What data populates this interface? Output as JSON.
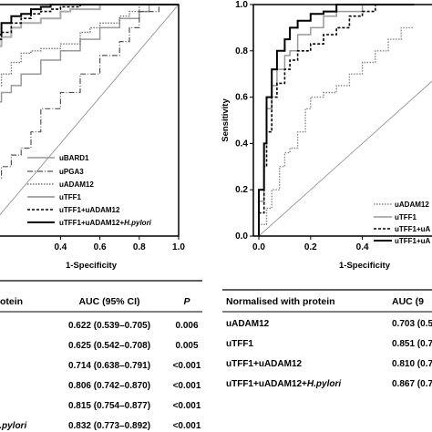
{
  "chart_data": [
    {
      "type": "line",
      "xlabel": "1-Specificity",
      "ylabel": "",
      "xlim": [
        0,
        1.0
      ],
      "ylim": [
        0,
        1.0
      ],
      "x_ticks": [
        "0.4",
        "0.6",
        "0.8",
        "1.0"
      ],
      "legend_position": "bottom-right",
      "series": [
        {
          "name": "uBARD1",
          "style": "solid-gray",
          "color": "#999999",
          "x": [
            0,
            0.02,
            0.05,
            0.1,
            0.15,
            0.2,
            0.3,
            0.4,
            0.5,
            0.6,
            0.7,
            0.8,
            0.85,
            0.9,
            1.0
          ],
          "y": [
            0,
            0.48,
            0.52,
            0.58,
            0.62,
            0.65,
            0.7,
            0.76,
            0.8,
            0.85,
            0.9,
            0.94,
            0.97,
            1.0,
            1.0
          ]
        },
        {
          "name": "uPGA3",
          "style": "dashdot",
          "color": "#555555",
          "x": [
            0,
            0.05,
            0.1,
            0.15,
            0.2,
            0.25,
            0.3,
            0.4,
            0.5,
            0.6,
            0.7,
            0.75,
            0.8,
            0.9,
            1.0
          ],
          "y": [
            0,
            0.2,
            0.25,
            0.3,
            0.35,
            0.38,
            0.45,
            0.55,
            0.62,
            0.7,
            0.78,
            0.84,
            0.9,
            0.97,
            1.0
          ]
        },
        {
          "name": "uADAM12",
          "style": "dotted",
          "color": "#777777",
          "x": [
            0,
            0.05,
            0.1,
            0.15,
            0.2,
            0.25,
            0.3,
            0.4,
            0.5,
            0.55,
            0.6,
            0.7,
            0.75,
            0.8,
            0.9,
            1.0
          ],
          "y": [
            0,
            0.62,
            0.65,
            0.7,
            0.75,
            0.79,
            0.8,
            0.81,
            0.83,
            0.88,
            0.9,
            0.92,
            0.95,
            0.97,
            1.0,
            1.0
          ]
        },
        {
          "name": "uTFF1",
          "style": "solid-gray-thick",
          "color": "#aaaaaa",
          "x": [
            0,
            0.02,
            0.05,
            0.1,
            0.15,
            0.2,
            0.3,
            0.4,
            0.45,
            0.5,
            0.6,
            0.7,
            0.8,
            0.9,
            1.0
          ],
          "y": [
            0,
            0.7,
            0.78,
            0.82,
            0.86,
            0.9,
            0.92,
            0.94,
            0.97,
            0.98,
            0.98,
            1.0,
            1.0,
            1.0,
            1.0
          ]
        },
        {
          "name": "uTFF1+uADAM12",
          "style": "dashed",
          "color": "#000000",
          "x": [
            0,
            0.02,
            0.05,
            0.1,
            0.15,
            0.2,
            0.25,
            0.3,
            0.35,
            0.4,
            0.5,
            0.6,
            0.7,
            0.8,
            1.0
          ],
          "y": [
            0,
            0.72,
            0.78,
            0.85,
            0.88,
            0.92,
            0.94,
            0.96,
            0.97,
            0.98,
            0.99,
            1.0,
            1.0,
            1.0,
            1.0
          ]
        },
        {
          "name": "uTFF1+uADAM12+H.pylori",
          "style": "solid-black",
          "color": "#000000",
          "x": [
            0,
            0.02,
            0.05,
            0.1,
            0.15,
            0.2,
            0.25,
            0.3,
            0.35,
            0.4,
            0.5,
            0.6,
            0.8,
            1.0
          ],
          "y": [
            0,
            0.74,
            0.8,
            0.87,
            0.92,
            0.95,
            0.96,
            0.98,
            0.99,
            1.0,
            1.0,
            1.0,
            1.0,
            1.0
          ]
        }
      ]
    },
    {
      "type": "line",
      "xlabel": "1-Specificity",
      "ylabel": "Sensitivity",
      "xlim": [
        0,
        0.6
      ],
      "ylim": [
        0,
        1.0
      ],
      "x_ticks": [
        "0.0",
        "0.2",
        "0.4"
      ],
      "y_ticks": [
        "0.0",
        "0.2",
        "0.4",
        "0.6",
        "0.8",
        "1.0"
      ],
      "legend_position": "bottom-right",
      "series": [
        {
          "name": "uADAM12",
          "style": "dotted",
          "color": "#888888",
          "x": [
            0,
            0.03,
            0.05,
            0.08,
            0.1,
            0.12,
            0.15,
            0.18,
            0.2,
            0.25,
            0.3,
            0.35,
            0.4,
            0.45,
            0.5,
            0.55,
            0.6
          ],
          "y": [
            0,
            0.05,
            0.12,
            0.2,
            0.3,
            0.36,
            0.38,
            0.45,
            0.55,
            0.6,
            0.62,
            0.65,
            0.7,
            0.75,
            0.8,
            0.85,
            0.9
          ]
        },
        {
          "name": "uTFF1",
          "style": "solid-gray",
          "color": "#999999",
          "x": [
            0,
            0.02,
            0.03,
            0.05,
            0.07,
            0.1,
            0.12,
            0.15,
            0.2,
            0.25,
            0.3,
            0.4,
            0.45,
            0.5,
            0.6
          ],
          "y": [
            0,
            0.15,
            0.4,
            0.55,
            0.65,
            0.72,
            0.78,
            0.8,
            0.87,
            0.9,
            0.95,
            0.97,
            1.0,
            1.0,
            1.0
          ]
        },
        {
          "name": "uTFF1+uADAM12",
          "style": "dashed",
          "color": "#000000",
          "x": [
            0,
            0.02,
            0.03,
            0.05,
            0.07,
            0.1,
            0.12,
            0.15,
            0.2,
            0.25,
            0.3,
            0.35,
            0.4,
            0.45,
            0.5,
            0.6
          ],
          "y": [
            0,
            0.1,
            0.3,
            0.45,
            0.6,
            0.66,
            0.72,
            0.76,
            0.8,
            0.83,
            0.87,
            0.9,
            0.95,
            0.97,
            1.0,
            1.0
          ]
        },
        {
          "name": "uTFF1+uADAM12+H.pylori",
          "style": "solid-black",
          "color": "#000000",
          "x": [
            0,
            0.02,
            0.03,
            0.05,
            0.07,
            0.1,
            0.12,
            0.15,
            0.2,
            0.25,
            0.3,
            0.35,
            0.4,
            0.45,
            0.5,
            0.6
          ],
          "y": [
            0,
            0.2,
            0.4,
            0.6,
            0.72,
            0.8,
            0.85,
            0.9,
            0.93,
            0.96,
            0.97,
            1.0,
            1.0,
            1.0,
            1.0,
            1.0
          ]
        }
      ]
    }
  ],
  "table_left": {
    "header_first": "otein",
    "header_auc": "AUC (95% CI)",
    "header_p": "P",
    "rows": [
      {
        "label": "",
        "auc": "0.622 (0.539–0.705)",
        "p": "0.006"
      },
      {
        "label": "",
        "auc": "0.625 (0.542–0.708)",
        "p": "0.005"
      },
      {
        "label": "",
        "auc": "0.714 (0.638–0.791)",
        "p": "<0.001"
      },
      {
        "label": "",
        "auc": "0.806 (0.742–0.870)",
        "p": "<0.001"
      },
      {
        "label": "",
        "auc": "0.815 (0.754–0.877)",
        "p": "<0.001"
      },
      {
        "label": "H.pylori",
        "auc": "0.832 (0.773–0.892)",
        "p": "<0.001"
      }
    ]
  },
  "table_right": {
    "header_first": "Normalised with protein",
    "header_auc": "AUC (9",
    "rows": [
      {
        "label": "uADAM12",
        "auc": "0.703 (0.5"
      },
      {
        "label": "uTFF1",
        "auc": "0.851 (0.7"
      },
      {
        "label": "uTFF1+uADAM12",
        "auc": "0.810 (0.7"
      },
      {
        "label_main": "uTFF1+uADAM12+",
        "label_italic": "H.pylori",
        "auc": "0.867 (0.7"
      }
    ]
  },
  "left_legend_visible": {
    "prefix": "u"
  },
  "right_legend_labels": [
    "uADAM12",
    "uTFF1",
    "uTFF1+uA",
    "uTFF1+uA"
  ]
}
